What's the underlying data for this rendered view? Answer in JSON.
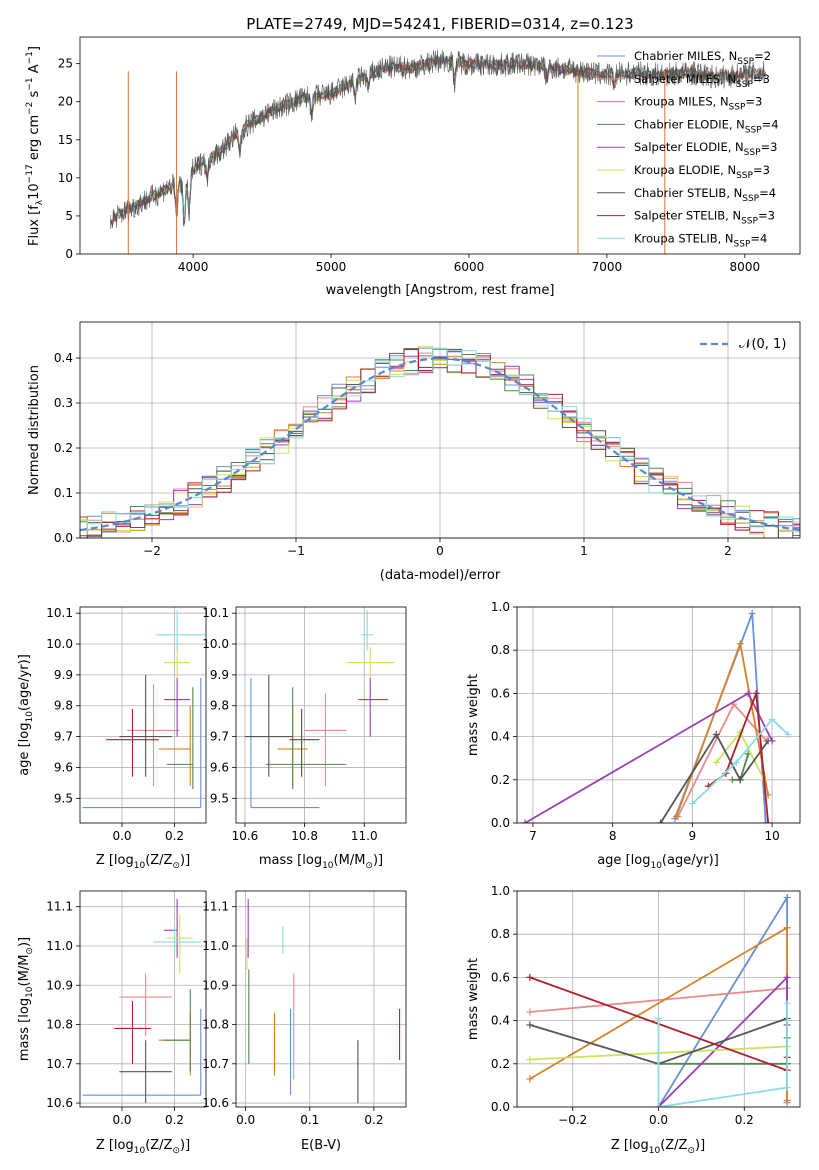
{
  "page": {
    "title": "PLATE=2749, MJD=54241, FIBERID=0314, z=0.123"
  },
  "models": [
    {
      "name": "Chabrier MILES, N",
      "nssp": "=2",
      "color": "#6a8fd8"
    },
    {
      "name": "Salpeter MILES, N",
      "nssp": "=3",
      "color": "#e88b8b"
    },
    {
      "name": "Kroupa MILES, N",
      "nssp": "=3",
      "color": "#d4822a"
    },
    {
      "name": "Chabrier ELODIE, N",
      "nssp": "=4",
      "color": "#4f8a4f"
    },
    {
      "name": "Salpeter ELODIE, N",
      "nssp": "=3",
      "color": "#9a3fb5"
    },
    {
      "name": "Kroupa ELODIE, N",
      "nssp": "=3",
      "color": "#cfe05a"
    },
    {
      "name": "Chabrier STELIB, N",
      "nssp": "=4",
      "color": "#555555"
    },
    {
      "name": "Salpeter STELIB, N",
      "nssp": "=3",
      "color": "#b0202a"
    },
    {
      "name": "Kroupa STELIB, N",
      "nssp": "=4",
      "color": "#88dde0"
    }
  ],
  "ssp_subscript": "SSP",
  "chart_data": [
    {
      "id": "spectrum",
      "type": "line",
      "xlabel": "wavelength [Angstrom, rest frame]",
      "ylabel": "Flux [f",
      "ylabel_sub": "λ",
      "ylabel_mid": "10",
      "ylabel_sup": "−17",
      "ylabel_rest": " erg cm",
      "ylabel_sup2": "−2",
      "ylabel_rest2": " s",
      "ylabel_sup3": "−1",
      "ylabel_rest3": " A",
      "ylabel_sup4": "−1",
      "ylabel_end": "]",
      "xlim": [
        3180,
        8400
      ],
      "ylim": [
        0,
        28.5
      ],
      "xticks": [
        4000,
        5000,
        6000,
        7000,
        8000
      ],
      "yticks": [
        0,
        5,
        10,
        15,
        20,
        25
      ],
      "spectrum_anchors_x": [
        3400,
        3500,
        3700,
        3900,
        4000,
        4100,
        4200,
        4300,
        4400,
        4600,
        4800,
        5000,
        5200,
        5400,
        5600,
        5800,
        6000,
        6200,
        6400,
        6600,
        6800,
        7000,
        7200,
        7400,
        7600,
        7800,
        8000,
        8150
      ],
      "spectrum_anchors_y": [
        4.5,
        5.5,
        7.5,
        9.5,
        11,
        12.5,
        13.5,
        15.5,
        17,
        19,
        20.5,
        21,
        23,
        24.5,
        24.5,
        25.5,
        25,
        24.8,
        25,
        24.5,
        24,
        23.5,
        23.8,
        23.5,
        23.8,
        23.2,
        23.6,
        23.8
      ]
    },
    {
      "id": "residuals",
      "type": "histogram",
      "xlabel": "(data-model)/error",
      "ylabel": "Normed distribution",
      "xlim": [
        -2.5,
        2.5
      ],
      "ylim": [
        0,
        0.48
      ],
      "xticks": [
        -2,
        -1,
        0,
        1,
        2
      ],
      "xtick_labels": [
        "−2",
        "−1",
        "0",
        "1",
        "2"
      ],
      "yticks": [
        0.0,
        0.1,
        0.2,
        0.3,
        0.4
      ],
      "ytick_labels": [
        "0.0",
        "0.1",
        "0.2",
        "0.3",
        "0.4"
      ],
      "legend": "𝒩(0, 1)",
      "bin_width": 0.1
    },
    {
      "id": "age_vs_Z",
      "type": "errorbar",
      "xlabel": "Z [log",
      "xlabel_sub": "10",
      "xlabel_rest": "(Z/Z",
      "xlabel_sub2": "⊙",
      "xlabel_end": ")]",
      "ylabel": "age  [log",
      "ylabel_sub": "10",
      "ylabel_rest": "(age/yr)]",
      "xlim": [
        -0.16,
        0.32
      ],
      "ylim": [
        9.42,
        10.12
      ],
      "xticks": [
        0.0,
        0.2
      ],
      "xtick_labels": [
        "0.0",
        "0.2"
      ],
      "yticks": [
        9.5,
        9.6,
        9.7,
        9.8,
        9.9,
        10.0,
        10.1
      ],
      "ytick_labels": [
        "9.5",
        "9.6",
        "9.7",
        "9.8",
        "9.9",
        "10.0",
        "10.1"
      ],
      "points": [
        {
          "x": 0.3,
          "y": 9.47,
          "xerr": [
            0.45,
            0.0
          ],
          "yerr": [
            0.0,
            0.42
          ]
        },
        {
          "x": 0.12,
          "y": 9.72,
          "xerr": [
            0.1,
            0.1
          ],
          "yerr": [
            0.18,
            0.15
          ]
        },
        {
          "x": 0.26,
          "y": 9.66,
          "xerr": [
            0.12,
            0.0
          ],
          "yerr": [
            0.12,
            0.14
          ]
        },
        {
          "x": 0.27,
          "y": 9.61,
          "xerr": [
            0.1,
            0.0
          ],
          "yerr": [
            0.08,
            0.25
          ]
        },
        {
          "x": 0.21,
          "y": 9.82,
          "xerr": [
            0.05,
            0.05
          ],
          "yerr": [
            0.12,
            0.07
          ]
        },
        {
          "x": 0.21,
          "y": 9.94,
          "xerr": [
            0.05,
            0.05
          ],
          "yerr": [
            0.05,
            0.05
          ]
        },
        {
          "x": 0.09,
          "y": 9.7,
          "xerr": [
            0.1,
            0.1
          ],
          "yerr": [
            0.13,
            0.2
          ]
        },
        {
          "x": 0.04,
          "y": 9.69,
          "xerr": [
            0.1,
            0.1
          ],
          "yerr": [
            0.12,
            0.1
          ]
        },
        {
          "x": 0.21,
          "y": 10.03,
          "xerr": [
            0.08,
            0.12
          ],
          "yerr": [
            0.05,
            0.08
          ]
        }
      ]
    },
    {
      "id": "age_vs_mass",
      "type": "errorbar",
      "xlabel": "mass [log",
      "xlabel_sub": "10",
      "xlabel_rest": "(M/M",
      "xlabel_sub2": "⊙",
      "xlabel_end": ")]",
      "xlim": [
        10.57,
        11.14
      ],
      "ylim": [
        9.42,
        10.12
      ],
      "xticks": [
        10.6,
        10.8,
        11.0
      ],
      "xtick_labels": [
        "10.6",
        "10.8",
        "11.0"
      ],
      "yticks": [
        9.5,
        9.6,
        9.7,
        9.8,
        9.9,
        10.0,
        10.1
      ],
      "ytick_labels": [
        "9.5",
        "9.6",
        "9.7",
        "9.8",
        "9.9",
        "10.0",
        "10.1"
      ],
      "points": [
        {
          "x": 10.62,
          "y": 9.47,
          "xerr": [
            0.0,
            0.23
          ],
          "yerr": [
            0.0,
            0.42
          ]
        },
        {
          "x": 10.87,
          "y": 9.72,
          "xerr": [
            0.07,
            0.07
          ],
          "yerr": [
            0.18,
            0.12
          ]
        },
        {
          "x": 10.76,
          "y": 9.66,
          "xerr": [
            0.05,
            0.05
          ],
          "yerr": [
            0.12,
            0.14
          ]
        },
        {
          "x": 10.76,
          "y": 9.61,
          "xerr": [
            0.09,
            0.18
          ],
          "yerr": [
            0.08,
            0.25
          ]
        },
        {
          "x": 11.02,
          "y": 9.82,
          "xerr": [
            0.04,
            0.06
          ],
          "yerr": [
            0.12,
            0.07
          ]
        },
        {
          "x": 11.02,
          "y": 9.94,
          "xerr": [
            0.08,
            0.08
          ],
          "yerr": [
            0.05,
            0.05
          ]
        },
        {
          "x": 10.68,
          "y": 9.7,
          "xerr": [
            0.08,
            0.08
          ],
          "yerr": [
            0.13,
            0.2
          ]
        },
        {
          "x": 10.79,
          "y": 9.69,
          "xerr": [
            0.04,
            0.06
          ],
          "yerr": [
            0.12,
            0.1
          ]
        },
        {
          "x": 11.01,
          "y": 10.03,
          "xerr": [
            0.02,
            0.02
          ],
          "yerr": [
            0.05,
            0.08
          ]
        }
      ]
    },
    {
      "id": "weight_vs_age",
      "type": "line",
      "xlabel": "age  [log",
      "xlabel_sub": "10",
      "xlabel_rest": "(age/yr)]",
      "ylabel": "mass weight",
      "xlim": [
        6.8,
        10.35
      ],
      "ylim": [
        0,
        1.0
      ],
      "xticks": [
        7,
        8,
        9,
        10
      ],
      "xtick_labels": [
        "7",
        "8",
        "9",
        "10"
      ],
      "yticks": [
        0.0,
        0.2,
        0.4,
        0.6,
        0.8,
        1.0
      ],
      "ytick_labels": [
        "0.0",
        "0.2",
        "0.4",
        "0.6",
        "0.8",
        "1.0"
      ],
      "series": [
        {
          "x": [
            8.78,
            9.75,
            9.92
          ],
          "y": [
            0.02,
            0.97,
            0.0
          ]
        },
        {
          "x": [
            8.82,
            9.52,
            9.93
          ],
          "y": [
            0.03,
            0.55,
            0.38
          ]
        },
        {
          "x": [
            8.8,
            9.6,
            9.95
          ],
          "y": [
            0.03,
            0.83,
            0.13
          ]
        },
        {
          "x": [
            9.5,
            9.6,
            9.7
          ],
          "y": [
            0.2,
            0.2,
            0.32
          ]
        },
        {
          "x": [
            6.9,
            9.7,
            10.0
          ],
          "y": [
            0.0,
            0.6,
            0.38
          ]
        },
        {
          "x": [
            9.3,
            9.6,
            9.9
          ],
          "y": [
            0.28,
            0.42,
            0.2
          ]
        },
        {
          "x": [
            8.6,
            9.3,
            9.6,
            9.95
          ],
          "y": [
            0.0,
            0.41,
            0.2,
            0.38
          ]
        },
        {
          "x": [
            9.2,
            9.42,
            9.8,
            9.95
          ],
          "y": [
            0.17,
            0.23,
            0.6,
            0.0
          ]
        },
        {
          "x": [
            9.0,
            9.55,
            10.0,
            10.2
          ],
          "y": [
            0.09,
            0.28,
            0.48,
            0.41
          ]
        }
      ]
    },
    {
      "id": "mass_vs_Z",
      "type": "errorbar",
      "xlabel": "Z [log",
      "xlabel_sub": "10",
      "xlabel_rest": "(Z/Z",
      "xlabel_sub2": "⊙",
      "xlabel_end": ")]",
      "ylabel": "mass [log",
      "ylabel_sub": "10",
      "ylabel_rest": "(M/M",
      "ylabel_sub2": "⊙",
      "ylabel_end": ")]",
      "xlim": [
        -0.16,
        0.32
      ],
      "ylim": [
        10.59,
        11.14
      ],
      "xticks": [
        0.0,
        0.2
      ],
      "xtick_labels": [
        "0.0",
        "0.2"
      ],
      "yticks": [
        10.6,
        10.7,
        10.8,
        10.9,
        11.0,
        11.1
      ],
      "ytick_labels": [
        "10.6",
        "10.7",
        "10.8",
        "10.9",
        "11.0",
        "11.1"
      ],
      "points": [
        {
          "x": 0.3,
          "y": 10.62,
          "xerr": [
            0.45,
            0.0
          ],
          "yerr": [
            0.0,
            0.22
          ]
        },
        {
          "x": 0.09,
          "y": 10.87,
          "xerr": [
            0.1,
            0.1
          ],
          "yerr": [
            0.1,
            0.06
          ]
        },
        {
          "x": 0.26,
          "y": 10.76,
          "xerr": [
            0.12,
            0.0
          ],
          "yerr": [
            0.09,
            0.07
          ]
        },
        {
          "x": 0.26,
          "y": 10.76,
          "xerr": [
            0.1,
            0.0
          ],
          "yerr": [
            0.08,
            0.13
          ]
        },
        {
          "x": 0.21,
          "y": 11.04,
          "xerr": [
            0.05,
            0.0
          ],
          "yerr": [
            0.07,
            0.08
          ]
        },
        {
          "x": 0.22,
          "y": 11.02,
          "xerr": [
            0.05,
            0.05
          ],
          "yerr": [
            0.09,
            0.06
          ]
        },
        {
          "x": 0.09,
          "y": 10.68,
          "xerr": [
            0.1,
            0.1
          ],
          "yerr": [
            0.08,
            0.08
          ]
        },
        {
          "x": 0.04,
          "y": 10.79,
          "xerr": [
            0.07,
            0.07
          ],
          "yerr": [
            0.09,
            0.07
          ]
        },
        {
          "x": 0.2,
          "y": 11.01,
          "xerr": [
            0.08,
            0.1
          ],
          "yerr": [
            0.03,
            0.05
          ]
        }
      ]
    },
    {
      "id": "mass_vs_ebv",
      "type": "errorbar",
      "xlabel": "E(B-V)",
      "xlim": [
        -0.015,
        0.25
      ],
      "ylim": [
        10.59,
        11.14
      ],
      "xticks": [
        0.0,
        0.1,
        0.2
      ],
      "xtick_labels": [
        "0.0",
        "0.1",
        "0.2"
      ],
      "yticks": [
        10.6,
        10.7,
        10.8,
        10.9,
        11.0,
        11.1
      ],
      "ytick_labels": [
        "10.6",
        "10.7",
        "10.8",
        "10.9",
        "11.0",
        "11.1"
      ],
      "points": [
        {
          "x": 0.07,
          "y": 10.72,
          "xerr": [
            0,
            0
          ],
          "yerr": [
            0.1,
            0.12
          ]
        },
        {
          "x": 0.075,
          "y": 10.8,
          "xerr": [
            0,
            0
          ],
          "yerr": [
            0.14,
            0.13
          ]
        },
        {
          "x": 0.045,
          "y": 10.75,
          "xerr": [
            0,
            0
          ],
          "yerr": [
            0.08,
            0.08
          ]
        },
        {
          "x": 0.005,
          "y": 10.82,
          "xerr": [
            0,
            0
          ],
          "yerr": [
            0.12,
            0.12
          ]
        },
        {
          "x": 0.004,
          "y": 11.04,
          "xerr": [
            0,
            0
          ],
          "yerr": [
            0.07,
            0.08
          ]
        },
        {
          "x": 0.002,
          "y": 10.98,
          "xerr": [
            0,
            0
          ],
          "yerr": [
            0.04,
            0.04
          ]
        },
        {
          "x": 0.175,
          "y": 10.68,
          "xerr": [
            0,
            0
          ],
          "yerr": [
            0.08,
            0.08
          ]
        },
        {
          "x": 0.24,
          "y": 10.77,
          "xerr": [
            0,
            0
          ],
          "yerr": [
            0.06,
            0.07
          ]
        },
        {
          "x": 0.058,
          "y": 11.01,
          "xerr": [
            0,
            0
          ],
          "yerr": [
            0.03,
            0.04
          ]
        }
      ]
    },
    {
      "id": "weight_vs_Z",
      "type": "line",
      "xlabel": "Z [log",
      "xlabel_sub": "10",
      "xlabel_rest": "(Z/Z",
      "xlabel_sub2": "⊙",
      "xlabel_end": ")]",
      "ylabel": "mass weight",
      "xlim": [
        -0.33,
        0.33
      ],
      "ylim": [
        0,
        1.0
      ],
      "xticks": [
        -0.2,
        0.0,
        0.2
      ],
      "xtick_labels": [
        "−0.2",
        "0.0",
        "0.2"
      ],
      "yticks": [
        0.0,
        0.2,
        0.4,
        0.6,
        0.8,
        1.0
      ],
      "ytick_labels": [
        "0.0",
        "0.2",
        "0.4",
        "0.6",
        "0.8",
        "1.0"
      ],
      "series": [
        {
          "x": [
            0.0,
            0.3,
            0.3
          ],
          "y": [
            0.0,
            0.97,
            0.02
          ]
        },
        {
          "x": [
            -0.3,
            0.3,
            0.3
          ],
          "y": [
            0.44,
            0.55,
            0.03
          ]
        },
        {
          "x": [
            -0.3,
            0.3,
            0.3
          ],
          "y": [
            0.13,
            0.83,
            0.03
          ]
        },
        {
          "x": [
            0.0,
            0.3,
            0.3
          ],
          "y": [
            0.2,
            0.2,
            0.32
          ]
        },
        {
          "x": [
            0.0,
            0.3,
            0.3
          ],
          "y": [
            0.0,
            0.6,
            0.38
          ]
        },
        {
          "x": [
            -0.3,
            0.3,
            0.3
          ],
          "y": [
            0.22,
            0.28,
            0.2
          ]
        },
        {
          "x": [
            -0.3,
            0.0,
            0.3,
            0.3
          ],
          "y": [
            0.38,
            0.2,
            0.41,
            0.2
          ]
        },
        {
          "x": [
            -0.3,
            0.3,
            0.3
          ],
          "y": [
            0.6,
            0.17,
            0.23
          ]
        },
        {
          "x": [
            0.0,
            0.0,
            0.3,
            0.3
          ],
          "y": [
            0.41,
            0.0,
            0.09,
            0.48
          ]
        }
      ]
    }
  ]
}
